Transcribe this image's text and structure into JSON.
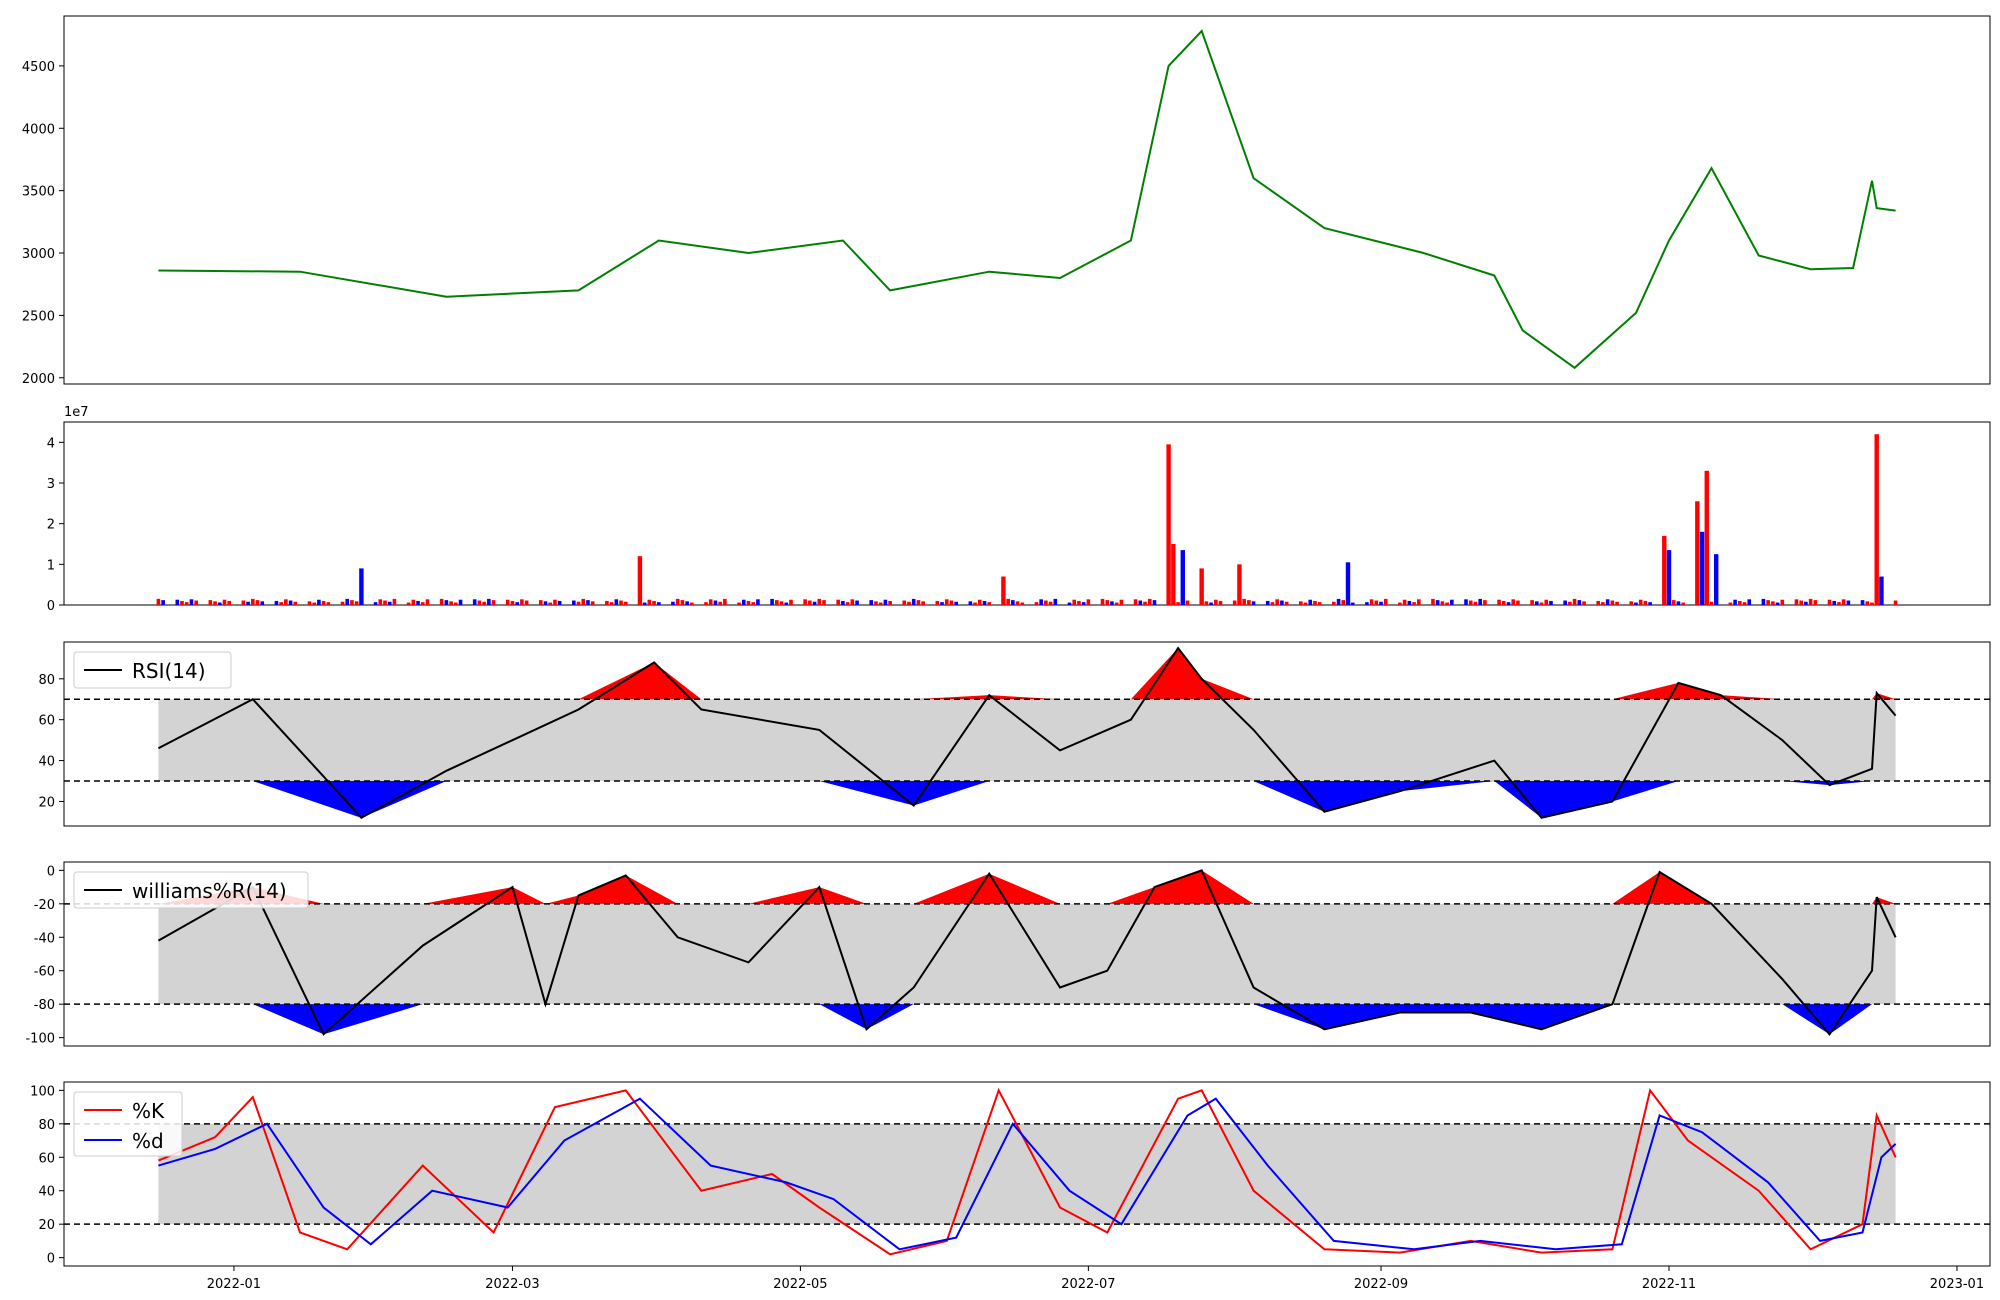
{
  "colors": {
    "price": "#008000",
    "up": "#ff0000",
    "down": "#0000ff",
    "neutral": "#000000",
    "band": "#d3d3d3",
    "line": "#000000",
    "k": "#ff0000",
    "d": "#0000ff"
  },
  "chart_data": [
    {
      "type": "line",
      "name": "price",
      "x_dates": [
        "2021-12-16",
        "2022-01-15",
        "2022-02-15",
        "2022-03-15",
        "2022-04-01",
        "2022-04-20",
        "2022-05-10",
        "2022-05-20",
        "2022-06-10",
        "2022-06-25",
        "2022-07-10",
        "2022-07-18",
        "2022-07-25",
        "2022-08-05",
        "2022-08-20",
        "2022-09-10",
        "2022-09-25",
        "2022-10-01",
        "2022-10-12",
        "2022-10-25",
        "2022-11-01",
        "2022-11-10",
        "2022-11-20",
        "2022-12-01",
        "2022-12-10",
        "2022-12-14",
        "2022-12-15",
        "2022-12-19"
      ],
      "y": [
        2860,
        2850,
        2650,
        2700,
        3100,
        3000,
        3100,
        2700,
        2850,
        2800,
        3100,
        4500,
        4780,
        3600,
        3200,
        3000,
        2820,
        2380,
        2080,
        2520,
        3100,
        3680,
        2980,
        2870,
        2880,
        3580,
        3360,
        3340
      ],
      "ylim": [
        1950,
        4900
      ],
      "yticks": [
        2000,
        2500,
        3000,
        3500,
        4000,
        4500
      ]
    },
    {
      "type": "bar",
      "name": "volume",
      "offset_label": "1e7",
      "ylim": [
        0,
        4.5
      ],
      "yticks": [
        0,
        1,
        2,
        3,
        4
      ],
      "bars": [
        {
          "date": "2022-01-28",
          "value": 0.9,
          "color": "down"
        },
        {
          "date": "2022-03-28",
          "value": 1.2,
          "color": "up"
        },
        {
          "date": "2022-06-13",
          "value": 0.7,
          "color": "up"
        },
        {
          "date": "2022-07-18",
          "value": 3.95,
          "color": "up"
        },
        {
          "date": "2022-07-19",
          "value": 1.5,
          "color": "up"
        },
        {
          "date": "2022-07-21",
          "value": 1.35,
          "color": "down"
        },
        {
          "date": "2022-07-25",
          "value": 0.9,
          "color": "up"
        },
        {
          "date": "2022-08-02",
          "value": 1.0,
          "color": "up"
        },
        {
          "date": "2022-08-25",
          "value": 1.05,
          "color": "down"
        },
        {
          "date": "2022-10-31",
          "value": 1.7,
          "color": "up"
        },
        {
          "date": "2022-11-01",
          "value": 1.35,
          "color": "down"
        },
        {
          "date": "2022-11-07",
          "value": 2.55,
          "color": "up"
        },
        {
          "date": "2022-11-08",
          "value": 1.8,
          "color": "down"
        },
        {
          "date": "2022-11-09",
          "value": 3.3,
          "color": "up"
        },
        {
          "date": "2022-11-11",
          "value": 1.25,
          "color": "down"
        },
        {
          "date": "2022-12-15",
          "value": 4.2,
          "color": "up"
        },
        {
          "date": "2022-12-16",
          "value": 0.7,
          "color": "down"
        }
      ]
    },
    {
      "type": "line",
      "name": "rsi",
      "legend": "RSI(14)",
      "upper": 70,
      "lower": 30,
      "ylim": [
        8,
        98
      ],
      "yticks": [
        20,
        40,
        60,
        80
      ],
      "x_dates": [
        "2021-12-16",
        "2022-01-05",
        "2022-01-28",
        "2022-02-15",
        "2022-03-15",
        "2022-03-31",
        "2022-04-10",
        "2022-05-05",
        "2022-05-25",
        "2022-06-10",
        "2022-06-25",
        "2022-07-10",
        "2022-07-20",
        "2022-07-25",
        "2022-08-05",
        "2022-08-20",
        "2022-09-05",
        "2022-09-25",
        "2022-10-05",
        "2022-10-20",
        "2022-11-03",
        "2022-11-12",
        "2022-11-25",
        "2022-12-05",
        "2022-12-14",
        "2022-12-15",
        "2022-12-19"
      ],
      "y": [
        46,
        70,
        12,
        35,
        65,
        88,
        65,
        55,
        18,
        72,
        45,
        60,
        95,
        80,
        55,
        15,
        25,
        40,
        12,
        20,
        78,
        72,
        50,
        28,
        36,
        73,
        62
      ]
    },
    {
      "type": "line",
      "name": "williams",
      "legend": "williams%R(14)",
      "upper": -20,
      "lower": -80,
      "ylim": [
        -105,
        5
      ],
      "yticks": [
        0,
        -20,
        -40,
        -60,
        -80,
        -100
      ],
      "x_dates": [
        "2021-12-16",
        "2022-01-05",
        "2022-01-20",
        "2022-02-10",
        "2022-03-01",
        "2022-03-08",
        "2022-03-15",
        "2022-03-25",
        "2022-04-05",
        "2022-04-20",
        "2022-05-05",
        "2022-05-15",
        "2022-05-25",
        "2022-06-10",
        "2022-06-25",
        "2022-07-05",
        "2022-07-15",
        "2022-07-25",
        "2022-08-05",
        "2022-08-20",
        "2022-09-05",
        "2022-09-20",
        "2022-10-05",
        "2022-10-20",
        "2022-10-30",
        "2022-11-10",
        "2022-11-25",
        "2022-12-05",
        "2022-12-14",
        "2022-12-15",
        "2022-12-19"
      ],
      "y": [
        -42,
        -10,
        -98,
        -45,
        -10,
        -80,
        -15,
        -3,
        -40,
        -55,
        -10,
        -95,
        -70,
        -2,
        -70,
        -60,
        -10,
        0,
        -70,
        -95,
        -85,
        -85,
        -95,
        -80,
        -1,
        -20,
        -65,
        -98,
        -60,
        -16,
        -40
      ]
    },
    {
      "type": "line",
      "name": "stochastic",
      "upper": 80,
      "lower": 20,
      "ylim": [
        -5,
        105
      ],
      "yticks": [
        0,
        20,
        40,
        60,
        80,
        100
      ],
      "x_tick_labels": [
        "2022-01",
        "2022-03",
        "2022-05",
        "2022-07",
        "2022-09",
        "2022-11",
        "2023-01"
      ],
      "series": [
        {
          "name": "%K",
          "color": "k",
          "x_dates": [
            "2021-12-16",
            "2021-12-28",
            "2022-01-05",
            "2022-01-15",
            "2022-01-25",
            "2022-02-10",
            "2022-02-25",
            "2022-03-10",
            "2022-03-25",
            "2022-04-10",
            "2022-04-25",
            "2022-05-05",
            "2022-05-20",
            "2022-06-01",
            "2022-06-12",
            "2022-06-25",
            "2022-07-05",
            "2022-07-20",
            "2022-07-25",
            "2022-08-05",
            "2022-08-20",
            "2022-09-05",
            "2022-09-20",
            "2022-10-05",
            "2022-10-20",
            "2022-10-28",
            "2022-11-05",
            "2022-11-20",
            "2022-12-01",
            "2022-12-12",
            "2022-12-15",
            "2022-12-19"
          ],
          "y": [
            58,
            72,
            96,
            15,
            5,
            55,
            15,
            90,
            100,
            40,
            50,
            30,
            2,
            10,
            100,
            30,
            15,
            95,
            100,
            40,
            5,
            3,
            10,
            3,
            5,
            100,
            70,
            40,
            5,
            20,
            85,
            60
          ]
        },
        {
          "name": "%d",
          "color": "d",
          "x_dates": [
            "2021-12-16",
            "2021-12-28",
            "2022-01-08",
            "2022-01-20",
            "2022-01-30",
            "2022-02-12",
            "2022-02-28",
            "2022-03-12",
            "2022-03-28",
            "2022-04-12",
            "2022-04-28",
            "2022-05-08",
            "2022-05-22",
            "2022-06-03",
            "2022-06-15",
            "2022-06-27",
            "2022-07-08",
            "2022-07-22",
            "2022-07-28",
            "2022-08-08",
            "2022-08-22",
            "2022-09-08",
            "2022-09-22",
            "2022-10-08",
            "2022-10-22",
            "2022-10-30",
            "2022-11-08",
            "2022-11-22",
            "2022-12-03",
            "2022-12-12",
            "2022-12-16",
            "2022-12-19"
          ],
          "y": [
            55,
            65,
            80,
            30,
            8,
            40,
            30,
            70,
            95,
            55,
            45,
            35,
            5,
            12,
            80,
            40,
            20,
            85,
            95,
            55,
            10,
            5,
            10,
            5,
            8,
            85,
            75,
            45,
            10,
            15,
            60,
            68
          ]
        }
      ]
    }
  ]
}
